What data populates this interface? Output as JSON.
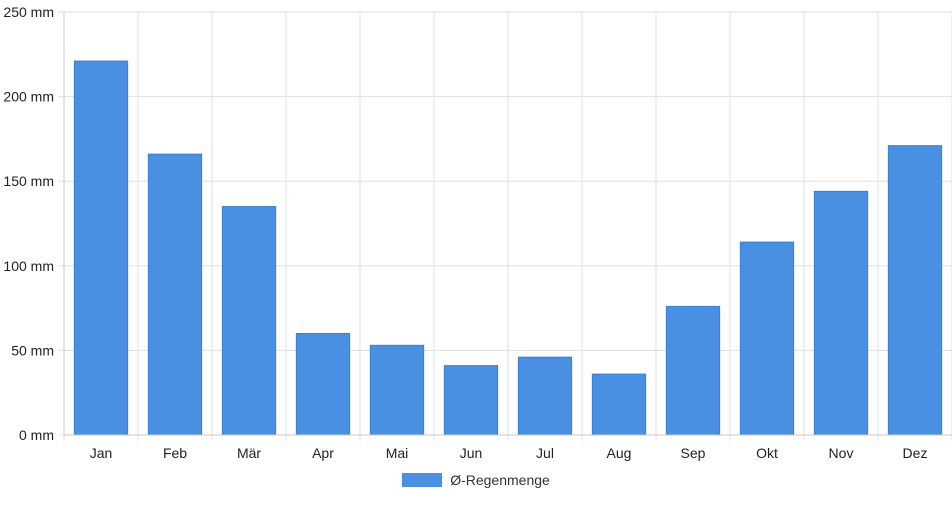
{
  "chart_data": {
    "type": "bar",
    "categories": [
      "Jan",
      "Feb",
      "Mär",
      "Apr",
      "Mai",
      "Jun",
      "Jul",
      "Aug",
      "Sep",
      "Okt",
      "Nov",
      "Dez"
    ],
    "series": [
      {
        "name": "Ø-Regenmenge",
        "values": [
          221,
          166,
          135,
          60,
          53,
          41,
          46,
          36,
          76,
          114,
          144,
          171
        ],
        "color": "#4a90e2"
      }
    ],
    "y_ticks": [
      "0 mm",
      "50 mm",
      "100 mm",
      "150 mm",
      "200 mm",
      "250 mm"
    ],
    "ylim": [
      0,
      250
    ],
    "grid": true,
    "legend_position": "bottom-center",
    "colors": {
      "grid": "#e0e0e0",
      "axis": "#c8c8c8",
      "tick_label": "#222222"
    }
  }
}
